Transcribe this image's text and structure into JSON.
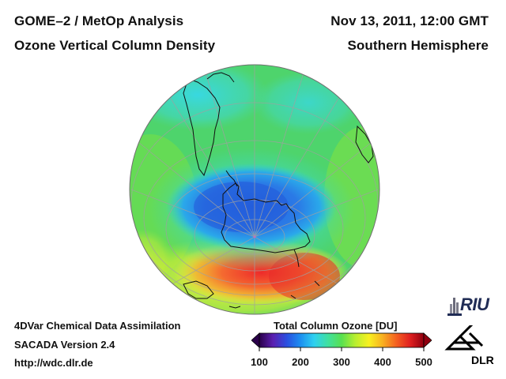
{
  "header": {
    "title_line1": "GOME–2 / MetOp Analysis",
    "title_line2": "Ozone Vertical Column Density",
    "date_line": "Nov 13, 2011, 12:00 GMT",
    "region_line": "Southern Hemisphere"
  },
  "info": {
    "line1": "4DVar Chemical Data Assimilation",
    "line2": "SACADA Version 2.4",
    "line3": "http://wdc.dlr.de"
  },
  "colorbar": {
    "title": "Total Column Ozone [DU]",
    "ticks": [
      "100",
      "200",
      "300",
      "400",
      "500"
    ],
    "min": 100,
    "max": 500,
    "colors": [
      "#2a004a",
      "#5b1fb0",
      "#2a4fe0",
      "#1c8ff0",
      "#2fd0f0",
      "#40e0a0",
      "#58e050",
      "#b8ee30",
      "#f8f020",
      "#f8b020",
      "#f46020",
      "#e02020",
      "#900010"
    ]
  },
  "logos": {
    "riu": "RIU",
    "dlr": "DLR"
  },
  "colors": {
    "globe_background": "#44d070",
    "ozone_hole": "#2f74e6",
    "ozone_high": "#f05030"
  }
}
